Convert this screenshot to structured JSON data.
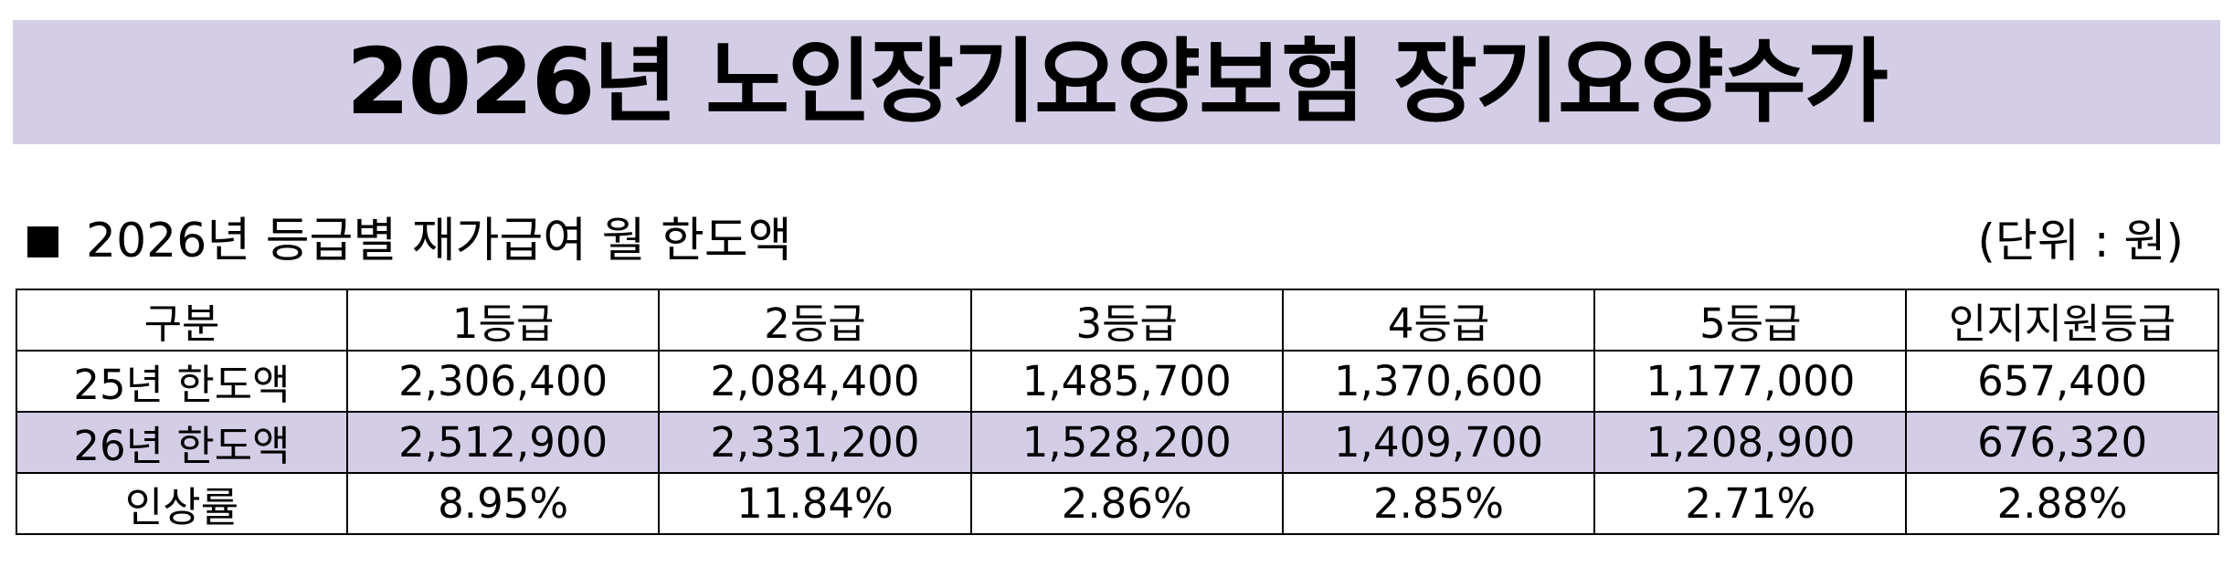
{
  "title": "2026년 노인장기요양보험 장기요양수가",
  "section": {
    "title": "2026년 등급별 재가급여 월 한도액",
    "unit": "(단위 : 원)"
  },
  "table": {
    "header": [
      "구분",
      "1등급",
      "2등급",
      "3등급",
      "4등급",
      "5등급",
      "인지지원등급"
    ],
    "rows": [
      [
        "25년 한도액",
        "2,306,400",
        "2,084,400",
        "1,485,700",
        "1,370,600",
        "1,177,000",
        "657,400"
      ],
      [
        "26년 한도액",
        "2,512,900",
        "2,331,200",
        "1,528,200",
        "1,409,700",
        "1,208,900",
        "676,320"
      ],
      [
        "인상률",
        "8.95%",
        "11.84%",
        "2.86%",
        "2.85%",
        "2.71%",
        "2.88%"
      ]
    ]
  },
  "colors": {
    "banner_bg": "#d4cde6",
    "highlight_row_bg": "#d4cde6",
    "border": "#000000",
    "text": "#000000"
  }
}
